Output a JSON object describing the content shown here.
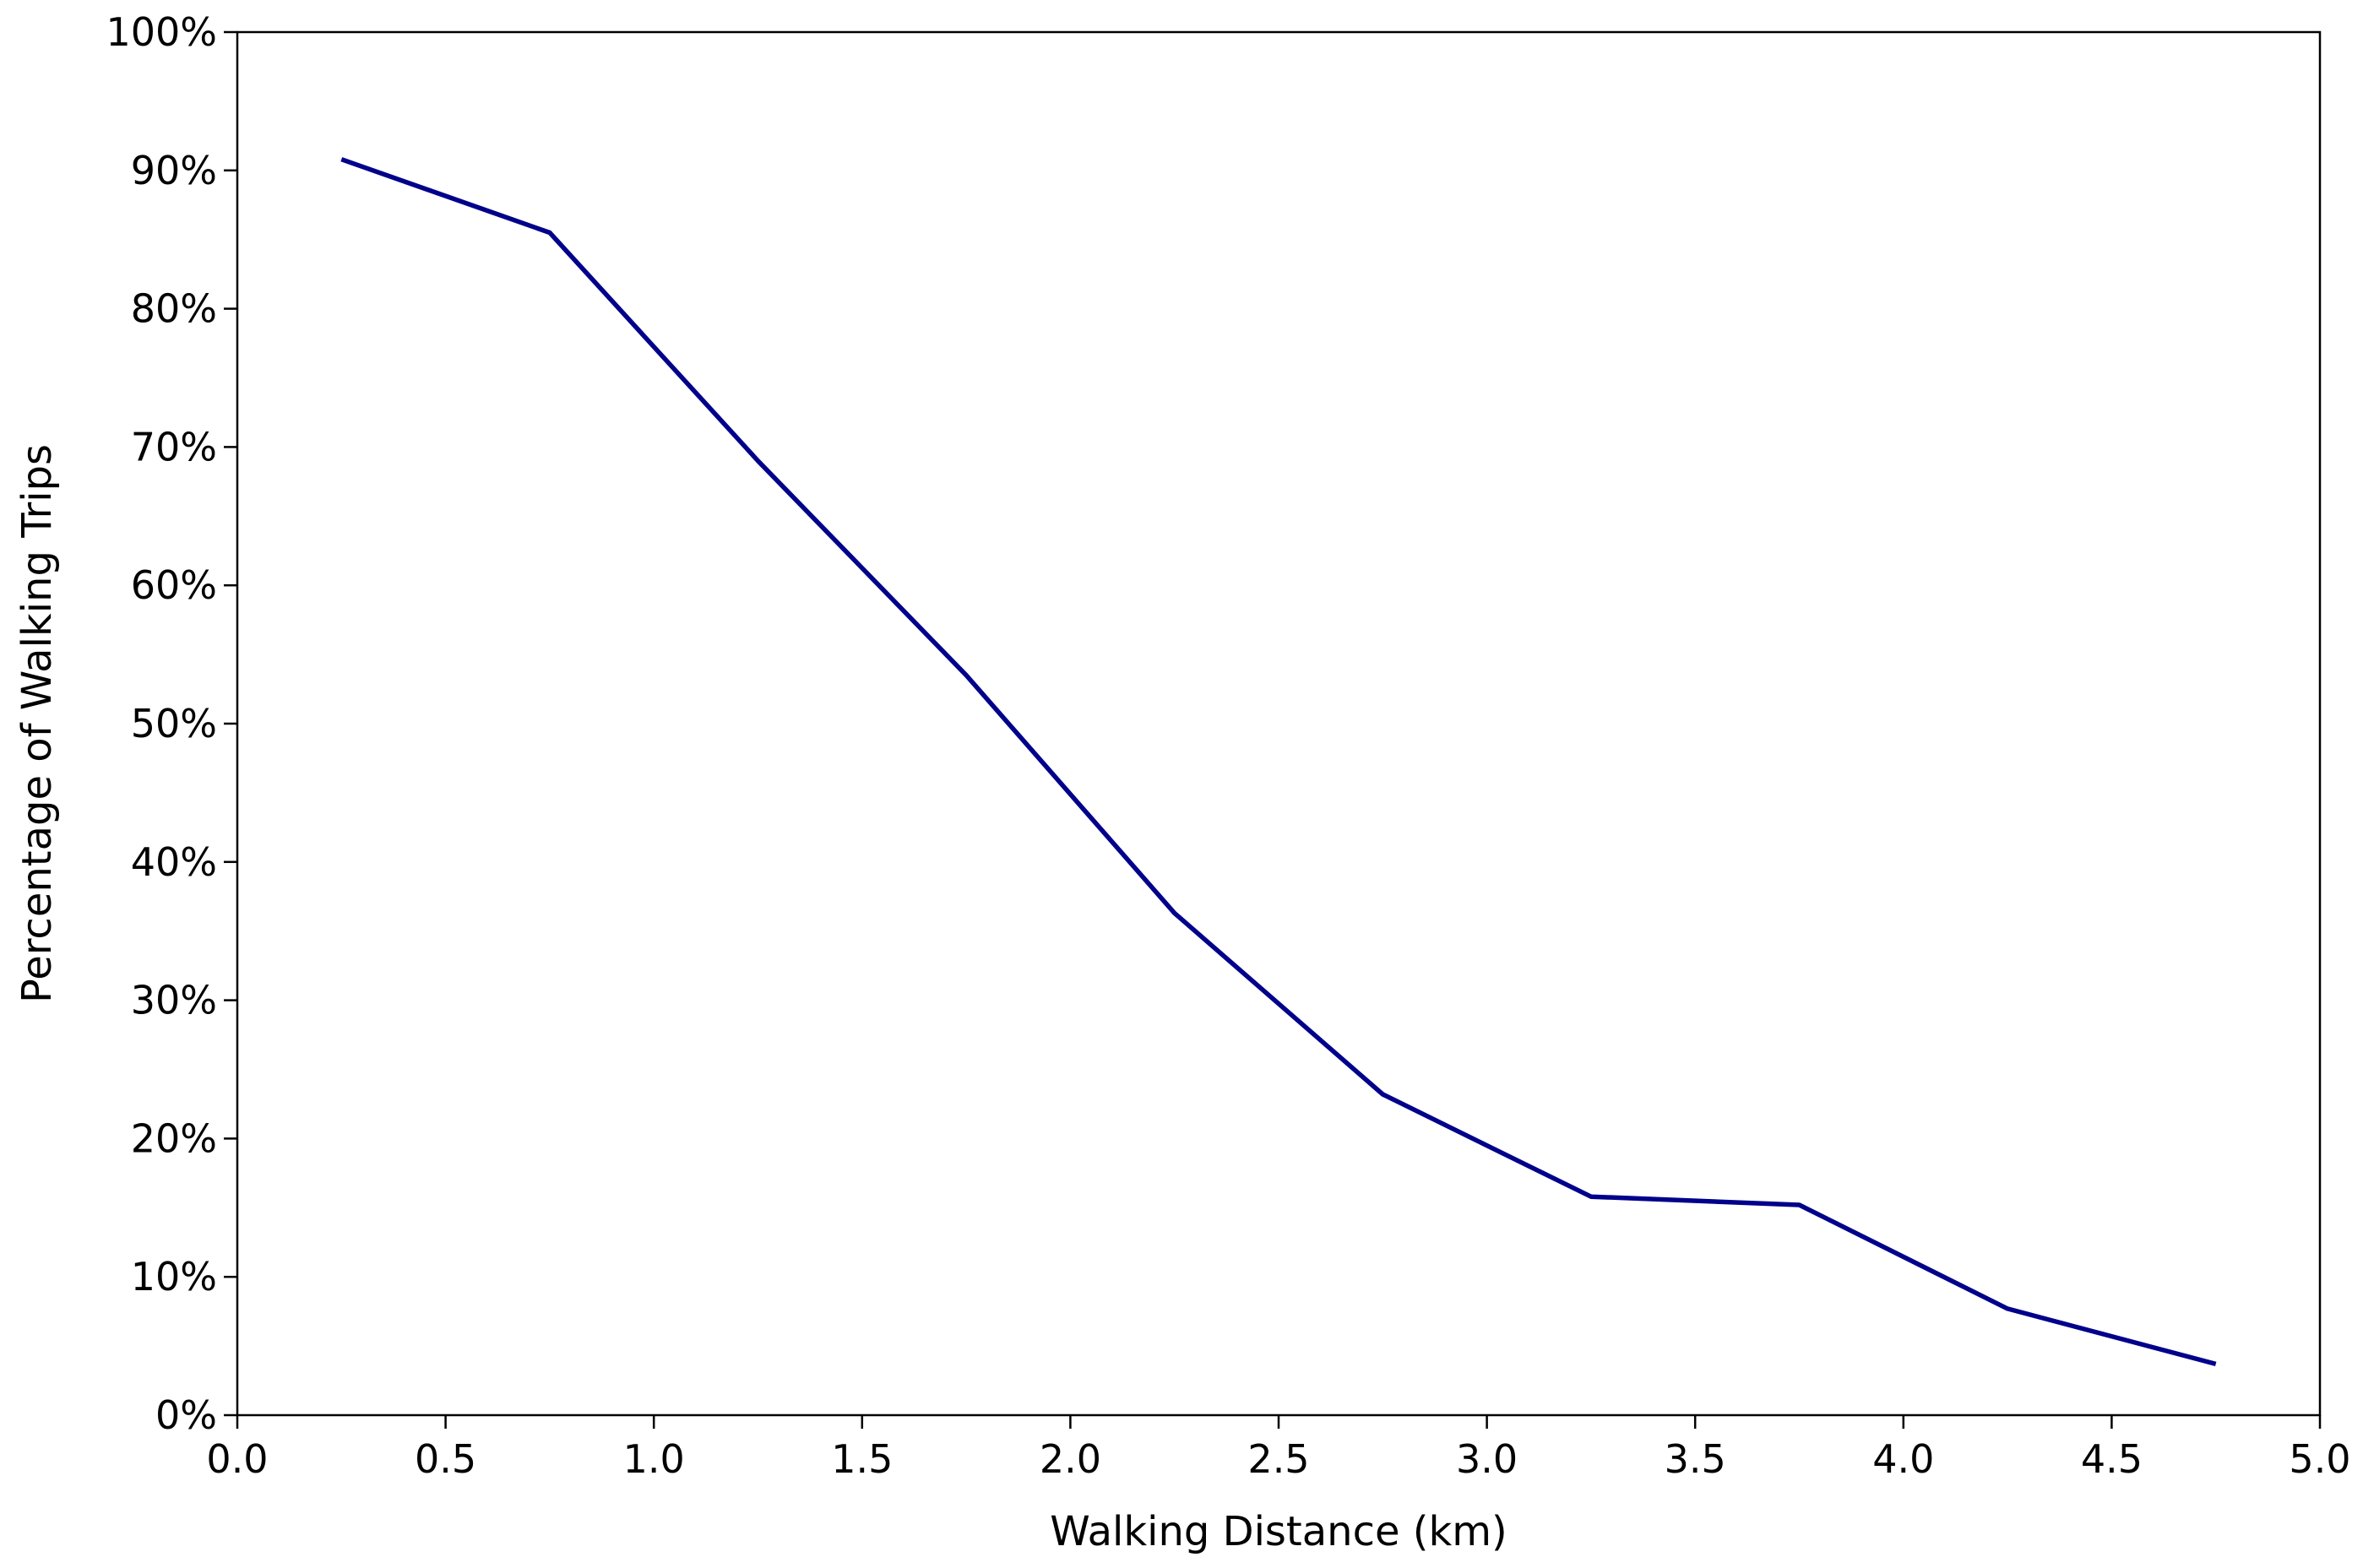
{
  "chart_data": {
    "type": "line",
    "title": "",
    "xlabel": "Walking Distance (km)",
    "ylabel": "Percentage of Walking Trips",
    "xlim": [
      0.0,
      5.0
    ],
    "ylim": [
      0,
      100
    ],
    "x_ticks": [
      "0.0",
      "0.5",
      "1.0",
      "1.5",
      "2.0",
      "2.5",
      "3.0",
      "3.5",
      "4.0",
      "4.5",
      "5.0"
    ],
    "y_ticks": [
      "0%",
      "10%",
      "20%",
      "30%",
      "40%",
      "50%",
      "60%",
      "70%",
      "80%",
      "90%",
      "100%"
    ],
    "grid": false,
    "legend": "none",
    "series": [
      {
        "color": "#00008b",
        "x": [
          0.25,
          0.75,
          1.25,
          1.75,
          2.25,
          2.75,
          3.25,
          3.75,
          4.25,
          4.75
        ],
        "y": [
          90.8,
          85.5,
          69.0,
          53.5,
          36.3,
          23.2,
          15.8,
          15.2,
          7.7,
          3.7
        ]
      }
    ]
  }
}
